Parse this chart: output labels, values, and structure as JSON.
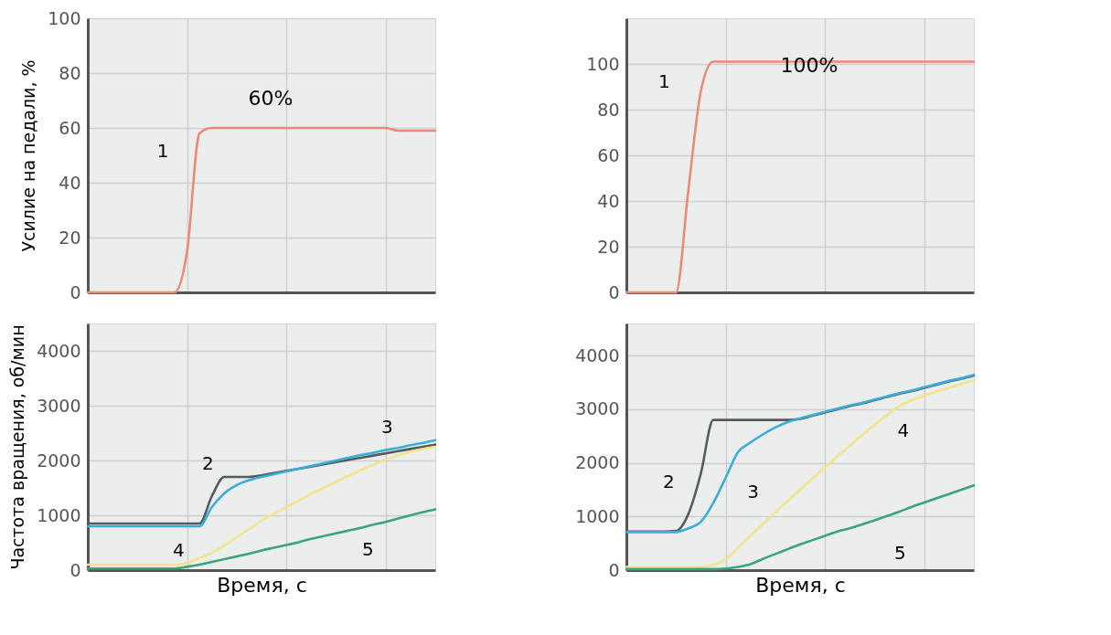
{
  "chart_data": [
    {
      "type": "line",
      "ylabel": "Усилие на педали, %",
      "annotations": [
        "60%"
      ],
      "categories": [
        null,
        null,
        null,
        null,
        null,
        null,
        null,
        null,
        null,
        null,
        null,
        null,
        null,
        null,
        null,
        null,
        null,
        null,
        null,
        null,
        null,
        null,
        null,
        null,
        null,
        null,
        null,
        null,
        null
      ],
      "ylim": [
        0,
        100
      ],
      "yticks": [
        0,
        20,
        40,
        60,
        80,
        100
      ],
      "grid": true,
      "tick_labels": "y",
      "series": [
        {
          "name": "1",
          "color": "#ec8a72",
          "values": [
            0,
            0,
            0,
            0,
            0,
            0,
            0,
            0,
            15,
            58,
            60,
            60,
            60,
            60,
            60,
            60,
            60,
            60,
            60,
            60,
            60,
            60,
            60,
            60,
            60,
            59,
            59,
            59,
            59
          ]
        }
      ]
    },
    {
      "type": "line",
      "xlabel": "Время, с",
      "ylabel": "Частота вращения, об/мин",
      "categories": [
        null,
        null,
        null,
        null,
        null,
        null,
        null,
        null,
        null,
        null,
        null,
        null,
        null,
        null,
        null,
        null,
        null,
        null,
        null,
        null,
        null,
        null,
        null,
        null,
        null,
        null,
        null,
        null,
        null
      ],
      "ylim": [
        0,
        4500
      ],
      "yticks": [
        0,
        1000,
        2000,
        3000,
        4000
      ],
      "grid": true,
      "tick_labels": "y",
      "series": [
        {
          "name": "2",
          "color": "#555a5c",
          "values": [
            850,
            850,
            850,
            850,
            850,
            850,
            850,
            850,
            850,
            850,
            1350,
            1700,
            1700,
            1700,
            1730,
            1770,
            1810,
            1850,
            1890,
            1930,
            1970,
            2010,
            2050,
            2090,
            2130,
            2170,
            2210,
            2250,
            2290
          ]
        },
        {
          "name": "3",
          "color": "#3aaed8",
          "values": [
            800,
            800,
            800,
            800,
            800,
            800,
            800,
            800,
            800,
            800,
            1150,
            1400,
            1550,
            1640,
            1700,
            1750,
            1800,
            1850,
            1900,
            1950,
            2000,
            2050,
            2100,
            2140,
            2190,
            2230,
            2280,
            2320,
            2370
          ]
        },
        {
          "name": "4",
          "color": "#efe58a",
          "values": [
            100,
            100,
            100,
            100,
            100,
            100,
            100,
            100,
            130,
            220,
            320,
            450,
            600,
            750,
            900,
            1030,
            1150,
            1270,
            1390,
            1500,
            1610,
            1720,
            1820,
            1920,
            2010,
            2090,
            2160,
            2210,
            2250
          ]
        },
        {
          "name": "5",
          "color": "#3aa57a",
          "values": [
            30,
            30,
            30,
            30,
            30,
            30,
            30,
            30,
            60,
            100,
            150,
            200,
            250,
            300,
            360,
            410,
            460,
            510,
            570,
            620,
            670,
            720,
            770,
            830,
            880,
            940,
            1000,
            1060,
            1110
          ]
        }
      ]
    },
    {
      "type": "line",
      "annotations": [
        "100%"
      ],
      "categories": [
        null,
        null,
        null,
        null,
        null,
        null,
        null,
        null,
        null,
        null,
        null,
        null,
        null,
        null,
        null,
        null,
        null,
        null,
        null,
        null,
        null,
        null,
        null,
        null,
        null,
        null,
        null,
        null,
        null
      ],
      "ylim": [
        0,
        120
      ],
      "yticks": [
        0,
        20,
        40,
        60,
        80,
        100
      ],
      "grid": true,
      "tick_labels": "y",
      "series": [
        {
          "name": "1",
          "color": "#ec8a72",
          "values": [
            0,
            0,
            0,
            0,
            0,
            45,
            88,
            101,
            101,
            101,
            101,
            101,
            101,
            101,
            101,
            101,
            101,
            101,
            101,
            101,
            101,
            101,
            101,
            101,
            101,
            101,
            101,
            101,
            101
          ]
        }
      ]
    },
    {
      "type": "line",
      "xlabel": "Время, с",
      "categories": [
        null,
        null,
        null,
        null,
        null,
        null,
        null,
        null,
        null,
        null,
        null,
        null,
        null,
        null,
        null,
        null,
        null,
        null,
        null,
        null,
        null,
        null,
        null,
        null,
        null,
        null,
        null,
        null,
        null
      ],
      "ylim": [
        0,
        4600
      ],
      "yticks": [
        0,
        1000,
        2000,
        3000,
        4000
      ],
      "grid": true,
      "tick_labels": "y",
      "series": [
        {
          "name": "2",
          "color": "#555a5c",
          "values": [
            720,
            720,
            720,
            720,
            730,
            1050,
            1800,
            2800,
            2800,
            2800,
            2800,
            2800,
            2800,
            2800,
            2820,
            2880,
            2940,
            3000,
            3060,
            3110,
            3170,
            3230,
            3290,
            3340,
            3400,
            3460,
            3520,
            3570,
            3630
          ]
        },
        {
          "name": "3",
          "color": "#3aaed8",
          "values": [
            710,
            710,
            710,
            710,
            710,
            780,
            900,
            1250,
            1720,
            2200,
            2380,
            2530,
            2660,
            2760,
            2830,
            2890,
            2950,
            3010,
            3070,
            3120,
            3180,
            3240,
            3300,
            3350,
            3410,
            3470,
            3530,
            3580,
            3640
          ]
        },
        {
          "name": "4",
          "color": "#efe58a",
          "values": [
            60,
            60,
            60,
            60,
            60,
            60,
            60,
            100,
            200,
            420,
            640,
            860,
            1080,
            1290,
            1500,
            1710,
            1920,
            2120,
            2320,
            2520,
            2710,
            2890,
            3060,
            3170,
            3250,
            3330,
            3400,
            3470,
            3540
          ]
        },
        {
          "name": "5",
          "color": "#3aa57a",
          "values": [
            20,
            20,
            20,
            20,
            20,
            20,
            20,
            20,
            30,
            60,
            110,
            210,
            300,
            390,
            480,
            560,
            640,
            720,
            780,
            850,
            930,
            1010,
            1090,
            1180,
            1260,
            1340,
            1420,
            1500,
            1580
          ]
        }
      ]
    }
  ]
}
